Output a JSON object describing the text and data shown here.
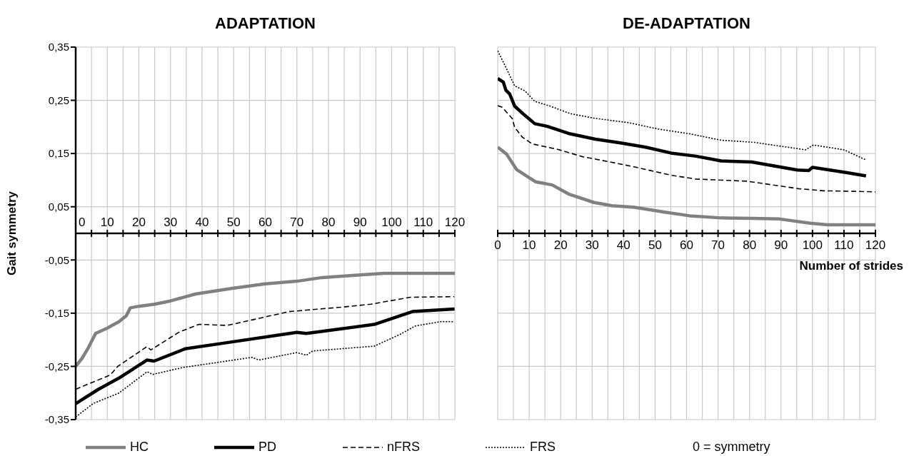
{
  "chart_data": [
    {
      "type": "line",
      "title": "ADAPTATION",
      "ylabel": "Gait symmetry",
      "xlim": [
        0,
        120
      ],
      "ylim": [
        -0.35,
        0.35
      ],
      "xticks": [
        0,
        {
          "value": 5,
          "label": null
        },
        10,
        {
          "value": 15,
          "label": null
        },
        20,
        {
          "value": 25,
          "label": null
        },
        30,
        {
          "value": 35,
          "label": null
        },
        40,
        {
          "value": 45,
          "label": null
        },
        50,
        {
          "value": 55,
          "label": null
        },
        60,
        {
          "value": 65,
          "label": null
        },
        70,
        {
          "value": 75,
          "label": null
        },
        80,
        {
          "value": 85,
          "label": null
        },
        90,
        {
          "value": 95,
          "label": null
        },
        100,
        {
          "value": 105,
          "label": null
        },
        110,
        {
          "value": 115,
          "label": null
        },
        120
      ],
      "yticks": [
        {
          "value": 0.35,
          "label": "0,35"
        },
        {
          "value": 0.25,
          "label": "0,25"
        },
        {
          "value": 0.15,
          "label": "0,15"
        },
        {
          "value": 0.05,
          "label": "0,05"
        },
        {
          "value": -0.05,
          "label": "-0,05"
        },
        {
          "value": -0.15,
          "label": "-0,15"
        },
        {
          "value": -0.25,
          "label": "-0,25"
        },
        {
          "value": -0.35,
          "label": "-0,35"
        }
      ],
      "grid": true,
      "legend": "bottom",
      "series": [
        {
          "name": "HC",
          "color": "#808080",
          "line_style": "solid",
          "x": [
            0,
            2,
            4,
            6.3,
            10,
            13.7,
            16,
            17.3,
            20,
            25,
            30,
            37.9,
            50,
            60,
            70,
            78,
            90,
            97.7,
            120
          ],
          "values": [
            -0.25,
            -0.235,
            -0.215,
            -0.188,
            -0.178,
            -0.166,
            -0.155,
            -0.14,
            -0.137,
            -0.133,
            -0.127,
            -0.114,
            -0.103,
            -0.095,
            -0.09,
            -0.083,
            -0.078,
            -0.075,
            -0.075
          ]
        },
        {
          "name": "PD",
          "color": "#000000",
          "line_style": "solid",
          "x": [
            0,
            7.2,
            13.7,
            22.6,
            24.8,
            34.6,
            46,
            70,
            73,
            94.5,
            106.6,
            119.9
          ],
          "values": [
            -0.32,
            -0.293,
            -0.272,
            -0.238,
            -0.24,
            -0.217,
            -0.207,
            -0.186,
            -0.188,
            -0.171,
            -0.147,
            -0.142
          ]
        },
        {
          "name": "nFRS",
          "color": "#000000",
          "line_style": "dashed",
          "x": [
            0,
            11,
            13.3,
            22.5,
            23.8,
            32.6,
            39,
            48,
            67.6,
            85.4,
            93.5,
            106,
            119.8
          ],
          "values": [
            -0.293,
            -0.266,
            -0.25,
            -0.213,
            -0.219,
            -0.186,
            -0.171,
            -0.173,
            -0.147,
            -0.138,
            -0.133,
            -0.12,
            -0.119
          ]
        },
        {
          "name": "FRS",
          "color": "#000000",
          "line_style": "dotted",
          "x": [
            0,
            5.5,
            13.7,
            22.6,
            24.4,
            34,
            55.8,
            58,
            70,
            73,
            75,
            94.5,
            102.6,
            107.5,
            115.5,
            119.8
          ],
          "values": [
            -0.345,
            -0.32,
            -0.3,
            -0.26,
            -0.265,
            -0.252,
            -0.233,
            -0.238,
            -0.224,
            -0.229,
            -0.221,
            -0.212,
            -0.19,
            -0.174,
            -0.166,
            -0.166
          ]
        }
      ]
    },
    {
      "type": "line",
      "title": "DE-ADAPTATION",
      "xlabel": "Number of strides",
      "xlim": [
        0,
        120
      ],
      "ylim": [
        -0.35,
        0.35
      ],
      "tick_labels": "x",
      "xticks": [
        0,
        {
          "value": 5,
          "label": null
        },
        10,
        {
          "value": 15,
          "label": null
        },
        20,
        {
          "value": 25,
          "label": null
        },
        30,
        {
          "value": 35,
          "label": null
        },
        40,
        {
          "value": 45,
          "label": null
        },
        50,
        {
          "value": 55,
          "label": null
        },
        60,
        {
          "value": 65,
          "label": null
        },
        70,
        {
          "value": 75,
          "label": null
        },
        80,
        {
          "value": 85,
          "label": null
        },
        90,
        {
          "value": 95,
          "label": null
        },
        100,
        {
          "value": 105,
          "label": null
        },
        110,
        {
          "value": 115,
          "label": null
        },
        120
      ],
      "yticks": [
        {
          "value": 0.35,
          "label": null
        },
        {
          "value": 0.25,
          "label": null
        },
        {
          "value": 0.15,
          "label": null
        },
        {
          "value": 0.05,
          "label": null
        },
        {
          "value": -0.05,
          "label": null
        },
        {
          "value": -0.15,
          "label": null
        },
        {
          "value": -0.25,
          "label": null
        },
        {
          "value": -0.35,
          "label": null
        }
      ],
      "grid": true,
      "annotations": [
        "0 = symmetry"
      ],
      "series": [
        {
          "color": "#808080",
          "line_style": "solid",
          "x": [
            0,
            2.8,
            6,
            12,
            17.3,
            22.5,
            30.6,
            36.3,
            43.5,
            53,
            61,
            71,
            80.7,
            89.5,
            99.2,
            104.8,
            120
          ],
          "values": [
            0.162,
            0.149,
            0.12,
            0.097,
            0.091,
            0.074,
            0.058,
            0.052,
            0.049,
            0.04,
            0.033,
            0.029,
            0.028,
            0.027,
            0.019,
            0.016,
            0.016
          ]
        },
        {
          "color": "#000000",
          "line_style": "solid",
          "x": [
            0,
            1.8,
            2.6,
            3.8,
            5.4,
            8.2,
            11.8,
            15.8,
            23,
            31,
            39,
            47,
            55,
            63,
            71,
            80.7,
            95.2,
            98.8,
            100,
            111,
            117
          ],
          "values": [
            0.291,
            0.284,
            0.269,
            0.262,
            0.239,
            0.224,
            0.206,
            0.201,
            0.187,
            0.177,
            0.17,
            0.162,
            0.151,
            0.145,
            0.136,
            0.134,
            0.119,
            0.118,
            0.124,
            0.114,
            0.108
          ]
        },
        {
          "color": "#000000",
          "line_style": "dashed",
          "x": [
            0,
            1.4,
            4.6,
            5.4,
            7.8,
            11,
            19,
            27,
            35,
            43.3,
            55.3,
            63,
            79.3,
            87.4,
            95.5,
            103.5,
            113,
            120
          ],
          "values": [
            0.24,
            0.237,
            0.216,
            0.199,
            0.181,
            0.168,
            0.158,
            0.144,
            0.135,
            0.125,
            0.109,
            0.102,
            0.098,
            0.091,
            0.084,
            0.08,
            0.079,
            0.078
          ]
        },
        {
          "color": "#000000",
          "line_style": "dotted",
          "x": [
            0,
            2.6,
            5.4,
            8.6,
            11.8,
            16.7,
            23,
            31,
            41.6,
            51,
            61,
            71,
            81.5,
            87.3,
            97.8,
            100.3,
            110,
            117
          ],
          "values": [
            0.343,
            0.312,
            0.277,
            0.268,
            0.248,
            0.239,
            0.225,
            0.216,
            0.208,
            0.196,
            0.187,
            0.175,
            0.171,
            0.166,
            0.157,
            0.166,
            0.157,
            0.138
          ]
        }
      ]
    }
  ]
}
